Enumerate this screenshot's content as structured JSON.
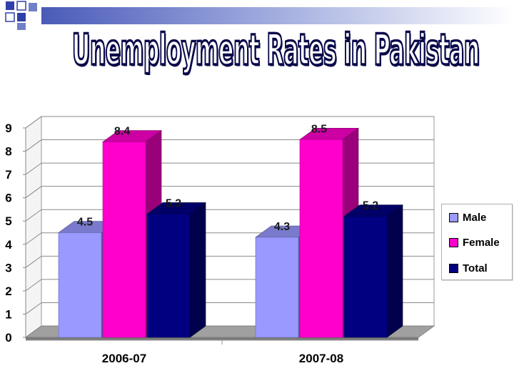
{
  "title": "Unemployment Rates in Pakistan",
  "colors": {
    "male": "#9999FF",
    "female": "#FF00CC",
    "total": "#000080",
    "deco_blue": "#3040a8"
  },
  "chart_data": {
    "type": "bar",
    "categories": [
      "2006-07",
      "2007-08"
    ],
    "series": [
      {
        "name": "Male",
        "values": [
          4.5,
          4.3
        ]
      },
      {
        "name": "Female",
        "values": [
          8.4,
          8.5
        ]
      },
      {
        "name": "Total",
        "values": [
          5.3,
          5.2
        ]
      }
    ],
    "data_labels": [
      [
        "4.5",
        "4.3"
      ],
      [
        "8.4",
        "8.5"
      ],
      [
        "5.3",
        "5.2"
      ]
    ],
    "ylim": [
      0,
      9
    ],
    "yticks": [
      "0",
      "1",
      "2",
      "3",
      "4",
      "5",
      "6",
      "7",
      "8",
      "9"
    ],
    "title": "",
    "xlabel": "",
    "ylabel": "",
    "grid": true,
    "style": "3d clustered columns",
    "legend_position": "right"
  },
  "legend": {
    "items": [
      {
        "label": "Male",
        "color": "#9999FF"
      },
      {
        "label": "Female",
        "color": "#FF00CC"
      },
      {
        "label": "Total",
        "color": "#000080"
      }
    ]
  }
}
